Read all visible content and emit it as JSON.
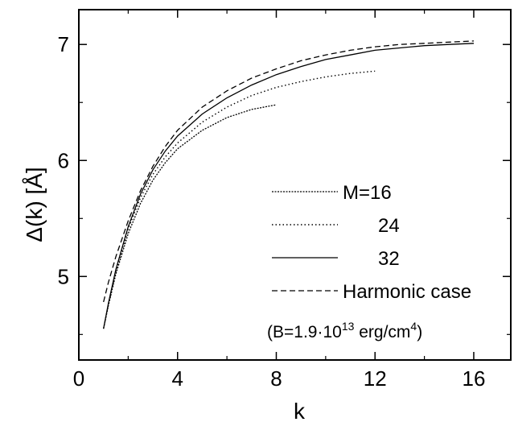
{
  "chart_data": {
    "type": "line",
    "xlabel": "k",
    "ylabel": "Δ(k) [Å]",
    "xlim": [
      0,
      17.5
    ],
    "ylim": [
      4.28,
      7.3
    ],
    "xticks": [
      0,
      4,
      8,
      12,
      16
    ],
    "yticks": [
      5,
      6,
      7
    ],
    "grid": false,
    "legend_placement": "bottom-right",
    "series": [
      {
        "name": "M=16",
        "style": "dashdot-fine",
        "x": [
          1,
          1.2,
          1.5,
          2,
          2.5,
          3,
          3.5,
          4,
          5,
          6,
          7,
          8
        ],
        "y": [
          4.55,
          4.75,
          5.02,
          5.37,
          5.63,
          5.83,
          5.98,
          6.1,
          6.26,
          6.37,
          6.44,
          6.48
        ]
      },
      {
        "name": "24",
        "style": "dotted",
        "x": [
          1,
          1.2,
          1.5,
          2,
          2.5,
          3,
          3.5,
          4,
          5,
          6,
          7,
          8,
          9,
          10,
          11,
          12
        ],
        "y": [
          4.55,
          4.76,
          5.04,
          5.41,
          5.68,
          5.88,
          6.03,
          6.15,
          6.33,
          6.46,
          6.56,
          6.63,
          6.68,
          6.72,
          6.75,
          6.77
        ]
      },
      {
        "name": "32",
        "style": "solid",
        "x": [
          1,
          1.2,
          1.5,
          2,
          2.5,
          3,
          3.5,
          4,
          5,
          6,
          7,
          8,
          9,
          10,
          11,
          12,
          13,
          14,
          15,
          16
        ],
        "y": [
          4.55,
          4.77,
          5.06,
          5.43,
          5.71,
          5.92,
          6.08,
          6.21,
          6.4,
          6.54,
          6.65,
          6.74,
          6.81,
          6.87,
          6.91,
          6.95,
          6.97,
          6.99,
          7.0,
          7.01
        ]
      },
      {
        "name": "Harmonic case",
        "style": "dashed",
        "x": [
          1,
          1.2,
          1.5,
          2,
          2.5,
          3,
          3.5,
          4,
          5,
          6,
          7,
          8,
          9,
          10,
          11,
          12,
          13,
          14,
          15,
          16
        ],
        "y": [
          4.78,
          4.95,
          5.17,
          5.48,
          5.74,
          5.95,
          6.12,
          6.26,
          6.46,
          6.6,
          6.71,
          6.79,
          6.86,
          6.91,
          6.95,
          6.98,
          7.0,
          7.01,
          7.02,
          7.03
        ]
      }
    ],
    "annotation": {
      "prefix": "(B=1.9·10",
      "sup1": "13",
      "middle": " erg/cm",
      "sup2": "4",
      "suffix": ")"
    }
  }
}
